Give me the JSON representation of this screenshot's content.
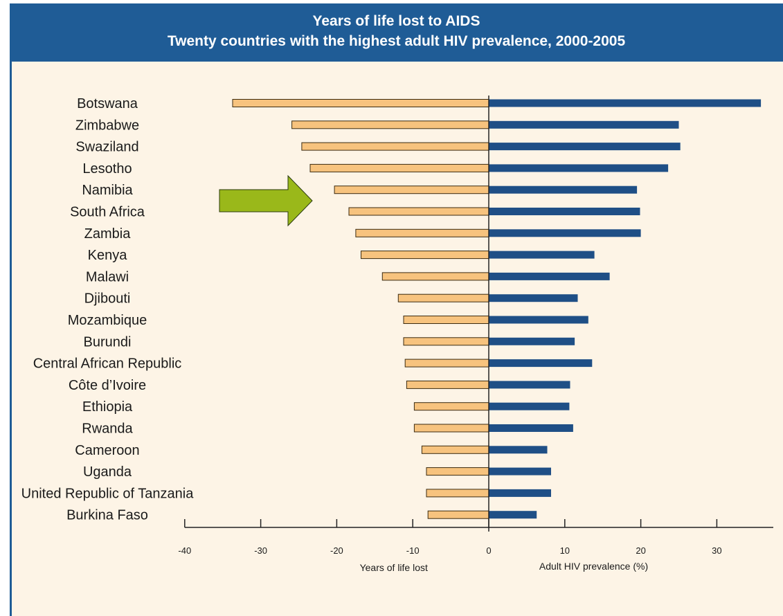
{
  "chart_data": {
    "type": "bar",
    "title": "Years of life lost to AIDS",
    "subtitle": "Twenty countries with the highest adult HIV prevalence, 2000-2005",
    "categories": [
      "Botswana",
      "Zimbabwe",
      "Swaziland",
      "Lesotho",
      "Namibia",
      "South Africa",
      "Zambia",
      "Kenya",
      "Malawi",
      "Djibouti",
      "Mozambique",
      "Burundi",
      "Central African Republic",
      "Côte d’Ivoire",
      "Ethiopia",
      "Rwanda",
      "Cameroon",
      "Uganda",
      "United Republic of Tanzania",
      "Burkina Faso"
    ],
    "series": [
      {
        "name": "Years of life lost",
        "color": "#f7c37e",
        "values": [
          -33.7,
          -25.9,
          -24.6,
          -23.5,
          -20.3,
          -18.4,
          -17.5,
          -16.8,
          -14.0,
          -11.9,
          -11.2,
          -11.2,
          -11.0,
          -10.8,
          -9.8,
          -9.8,
          -8.8,
          -8.2,
          -8.2,
          -8.0
        ]
      },
      {
        "name": "Adult HIV prevalence (%)",
        "color": "#1f4f86",
        "values": [
          35.8,
          25.0,
          25.2,
          23.6,
          19.5,
          19.9,
          20.0,
          13.9,
          15.9,
          11.7,
          13.1,
          11.3,
          13.6,
          10.7,
          10.6,
          11.1,
          7.7,
          8.2,
          8.2,
          6.3
        ]
      }
    ],
    "xlim": [
      -40,
      36
    ],
    "xticks": [
      -40,
      -30,
      -20,
      -10,
      0,
      10,
      20,
      30
    ],
    "xlabel_left": "Years of life lost",
    "xlabel_right": "Adult HIV prevalence (%)",
    "grid": false,
    "annotation": {
      "type": "arrow",
      "color": "#9ab81a",
      "points_to": "Namibia"
    }
  }
}
